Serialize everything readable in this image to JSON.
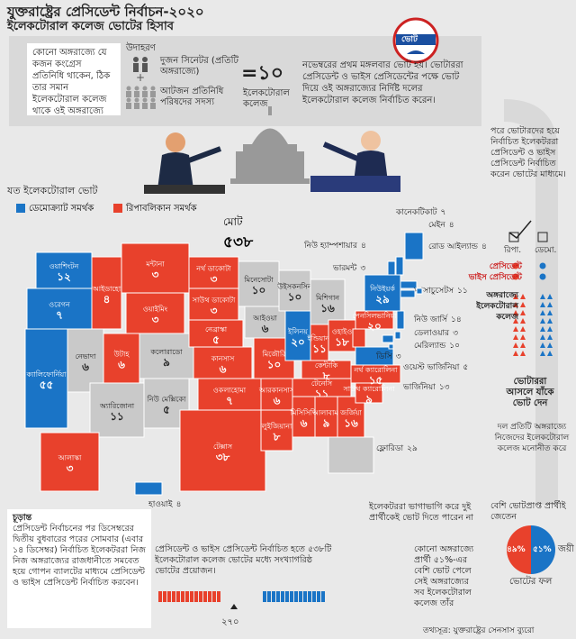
{
  "header": {
    "title": "যুক্তরাষ্ট্রের প্রেসিডেন্ট নির্বাচন-২০২০",
    "subtitle": "ইলেকটোরাল কলেজ ভোটের হিসাব"
  },
  "step1": {
    "text": "কোনো অঙ্গরাজ্যে যে কজন কংগ্রেস প্রতিনিধি থাকেন, ঠিক তার সমান ইলেকটোরাল কলেজ থাকে ওই অঙ্গরাজ্যে",
    "example": "উদাহরণ",
    "senators": "দুজন সিনেটর (প্রতিটি অঙ্গরাজ্যে)",
    "representatives": "আটজন প্রতিনিধি পরিষদের সদস্য",
    "equals": "=১০",
    "college": "ইলেকটোরাল কলেজ"
  },
  "step2": {
    "text": "নভেম্বরের প্রথম মঙ্গলবার ভোট হয়। ভোটাররা প্রেসিডেন্ট ও ভাইস প্রেসিডেন্টের পক্ষে ভোট দিয়ে ওই অঙ্গরাজ্যের নির্দিষ্ট দলের ইলেকটোরাল কলেজ নির্বাচিত করেন।",
    "badge": "ভোট"
  },
  "step3": {
    "text": "পরে ভোটারদের হয়ে নির্বাচিত ইলেকটররা প্রেসিডেন্ট ও ভাইস প্রেসিডেন্ট নির্বাচিত করেন ভোটের মাধ্যমে।",
    "rep": "রিপা.",
    "dem": "ডেমো.",
    "president": "প্রেসিডেন্ট",
    "vice": "ভাইস প্রেসিডেন্ট",
    "college": "অঙ্গরাজ্যে ইলেকটোরাল কলেজ",
    "voters": "ভোটাররা আসলে যাঁকে ভোট দেন",
    "party": "দল প্রতিটি অঙ্গরাজ্যে নিজেদের ইলেকটোরাল কলেজ মনোনীত করে"
  },
  "map": {
    "title": "যত ইলেকটোরাল ভোট",
    "legend": [
      {
        "label": "ডেমোক্র্যাট সমর্থক",
        "color": "#1a74c6"
      },
      {
        "label": "রিপাবলিকান সমর্থক",
        "color": "#e8412c"
      }
    ],
    "total_label": "মোট",
    "total": "৫৩৮",
    "states": [
      {
        "name": "ওয়াশিংটন",
        "votes": "১২",
        "color": "#1a74c6"
      },
      {
        "name": "ওরেগন",
        "votes": "৭",
        "color": "#1a74c6"
      },
      {
        "name": "ক্যালিফোর্নিয়া",
        "votes": "৫৫",
        "color": "#1a74c6"
      },
      {
        "name": "নেভাদা",
        "votes": "৬",
        "color": "#c9c9c9"
      },
      {
        "name": "আইডাহো",
        "votes": "৪",
        "color": "#e8412c"
      },
      {
        "name": "মন্টানা",
        "votes": "৩",
        "color": "#e8412c"
      },
      {
        "name": "ওয়াইমিং",
        "votes": "৩",
        "color": "#e8412c"
      },
      {
        "name": "উটাহ",
        "votes": "৬",
        "color": "#e8412c"
      },
      {
        "name": "অ্যারিজোনা",
        "votes": "১১",
        "color": "#c9c9c9"
      },
      {
        "name": "কলোরাডো",
        "votes": "৯",
        "color": "#c9c9c9"
      },
      {
        "name": "নিউ মেক্সিকো",
        "votes": "৫",
        "color": "#c9c9c9"
      },
      {
        "name": "নর্থ ডাকোটা",
        "votes": "৩",
        "color": "#e8412c"
      },
      {
        "name": "সাউথ ডাকোটা",
        "votes": "৩",
        "color": "#e8412c"
      },
      {
        "name": "নেব্রাস্কা",
        "votes": "৫",
        "color": "#e8412c"
      },
      {
        "name": "কানসাস",
        "votes": "৬",
        "color": "#e8412c"
      },
      {
        "name": "ওকলাহোমা",
        "votes": "৭",
        "color": "#e8412c"
      },
      {
        "name": "টেক্সাস",
        "votes": "৩৮",
        "color": "#e8412c"
      },
      {
        "name": "মিনেসোটা",
        "votes": "১০",
        "color": "#c9c9c9"
      },
      {
        "name": "আইওয়া",
        "votes": "৬",
        "color": "#c9c9c9"
      },
      {
        "name": "মিজৌরি",
        "votes": "১০",
        "color": "#e8412c"
      },
      {
        "name": "আরকানসাস",
        "votes": "৬",
        "color": "#e8412c"
      },
      {
        "name": "লুইজিয়ানা",
        "votes": "৮",
        "color": "#e8412c"
      },
      {
        "name": "উইসকনসিন",
        "votes": "১০",
        "color": "#c9c9c9"
      },
      {
        "name": "ইলিনয়",
        "votes": "২০",
        "color": "#1a74c6"
      },
      {
        "name": "মিশিগান",
        "votes": "১৬",
        "color": "#c9c9c9"
      },
      {
        "name": "ইন্ডিয়ানা",
        "votes": "১১",
        "color": "#e8412c"
      },
      {
        "name": "ওহাইও",
        "votes": "১৮",
        "color": "#e8412c"
      },
      {
        "name": "কেন্টাকি",
        "votes": "৮",
        "color": "#e8412c"
      },
      {
        "name": "টেনেসি",
        "votes": "১১",
        "color": "#e8412c"
      },
      {
        "name": "মিসিসিপি",
        "votes": "৬",
        "color": "#e8412c"
      },
      {
        "name": "আলাবামা",
        "votes": "৯",
        "color": "#e8412c"
      },
      {
        "name": "জর্জিয়া",
        "votes": "১৬",
        "color": "#e8412c"
      },
      {
        "name": "ফ্লোরিডা",
        "votes": "২৯",
        "color": "#c9c9c9"
      },
      {
        "name": "সাউথ ক্যারোলিনা",
        "votes": "৯",
        "color": "#e8412c"
      },
      {
        "name": "নর্থ ক্যারোলিনা",
        "votes": "১৫",
        "color": "#e8412c"
      },
      {
        "name": "ভার্জিনিয়া",
        "votes": "১৩",
        "color": "#1a74c6"
      },
      {
        "name": "ওয়েস্ট ভার্জিনিয়া",
        "votes": "৫",
        "color": "#e8412c"
      },
      {
        "name": "পেনসিলভানিয়া",
        "votes": "২০",
        "color": "#e8412c"
      },
      {
        "name": "নিউইয়র্ক",
        "votes": "২৯",
        "color": "#1a74c6"
      },
      {
        "name": "ভারমন্ট",
        "votes": "৩",
        "color": "#1a74c6"
      },
      {
        "name": "নিউ হ্যাম্পশায়ার",
        "votes": "৪",
        "color": "#1a74c6"
      },
      {
        "name": "মেইন",
        "votes": "৪",
        "color": "#1a74c6"
      },
      {
        "name": "ম্যাসাচুসেটস",
        "votes": "১১",
        "color": "#1a74c6"
      },
      {
        "name": "রোড আইল্যান্ড",
        "votes": "৪",
        "color": "#1a74c6"
      },
      {
        "name": "কানেকটিকাট",
        "votes": "৭",
        "color": "#1a74c6"
      },
      {
        "name": "নিউ জার্সি",
        "votes": "১৪",
        "color": "#1a74c6"
      },
      {
        "name": "ডেলাওয়ার",
        "votes": "৩",
        "color": "#1a74c6"
      },
      {
        "name": "মেরিল্যান্ড",
        "votes": "১০",
        "color": "#1a74c6"
      },
      {
        "name": "ডিসি",
        "votes": "৩",
        "color": "#1a74c6"
      },
      {
        "name": "আলাস্কা",
        "votes": "৩",
        "color": "#e8412c"
      },
      {
        "name": "হাওয়াই",
        "votes": "৪",
        "color": "#1a74c6"
      }
    ]
  },
  "final": {
    "title": "চূড়ান্ত",
    "text": "প্রেসিডেন্ট নির্বাচনের পর ডিসেম্বরের দ্বিতীয় বুধবারের পরের সোমবার (এবার ১৪ ডিসেম্বর) নির্বাচিত ইলেকটররা নিজ নিজ অঙ্গরাজ্যের রাজধানীতে সমবেত হয়ে গোপন ব্যালটের মাধ্যমে প্রেসিডেন্ট ও ভাইস প্রেসিডেন্ট নির্বাচিত করবেন।"
  },
  "majority": {
    "text": "প্রেসিডেন্ট ও ভাইস প্রেসিডেন্ট নির্বাচিত হতে ৫৩৮টি ইলেকটোরাল কলেজ ভোটের মধ্যে সংখ্যাগরিষ্ঠ ভোটের প্রয়োজন।",
    "needed": "২৭০"
  },
  "split": {
    "text": "ইলেকটররা ভাগাভাগি করে দুই প্রার্থীকেই ভোট দিতে পারেন না",
    "rule": "কোনো অঙ্গরাজ্যে প্রার্থী ৫১%-এর বেশি ভোট পেলে সেই অঙ্গরাজ্যের সব ইলেকটোরাল কলেজ তাঁর"
  },
  "winner": {
    "text": "বেশি ভোটপ্রাপ্ত প্রার্থীই জেতেন",
    "loser_share": "৪৯%",
    "winner_share": "৫১%",
    "winner": "জয়ী",
    "result": "ভোটের ফল"
  },
  "source": "তথ্যসূত্র: যুক্তরাষ্ট্রের সেনসাস ব্যুরো"
}
